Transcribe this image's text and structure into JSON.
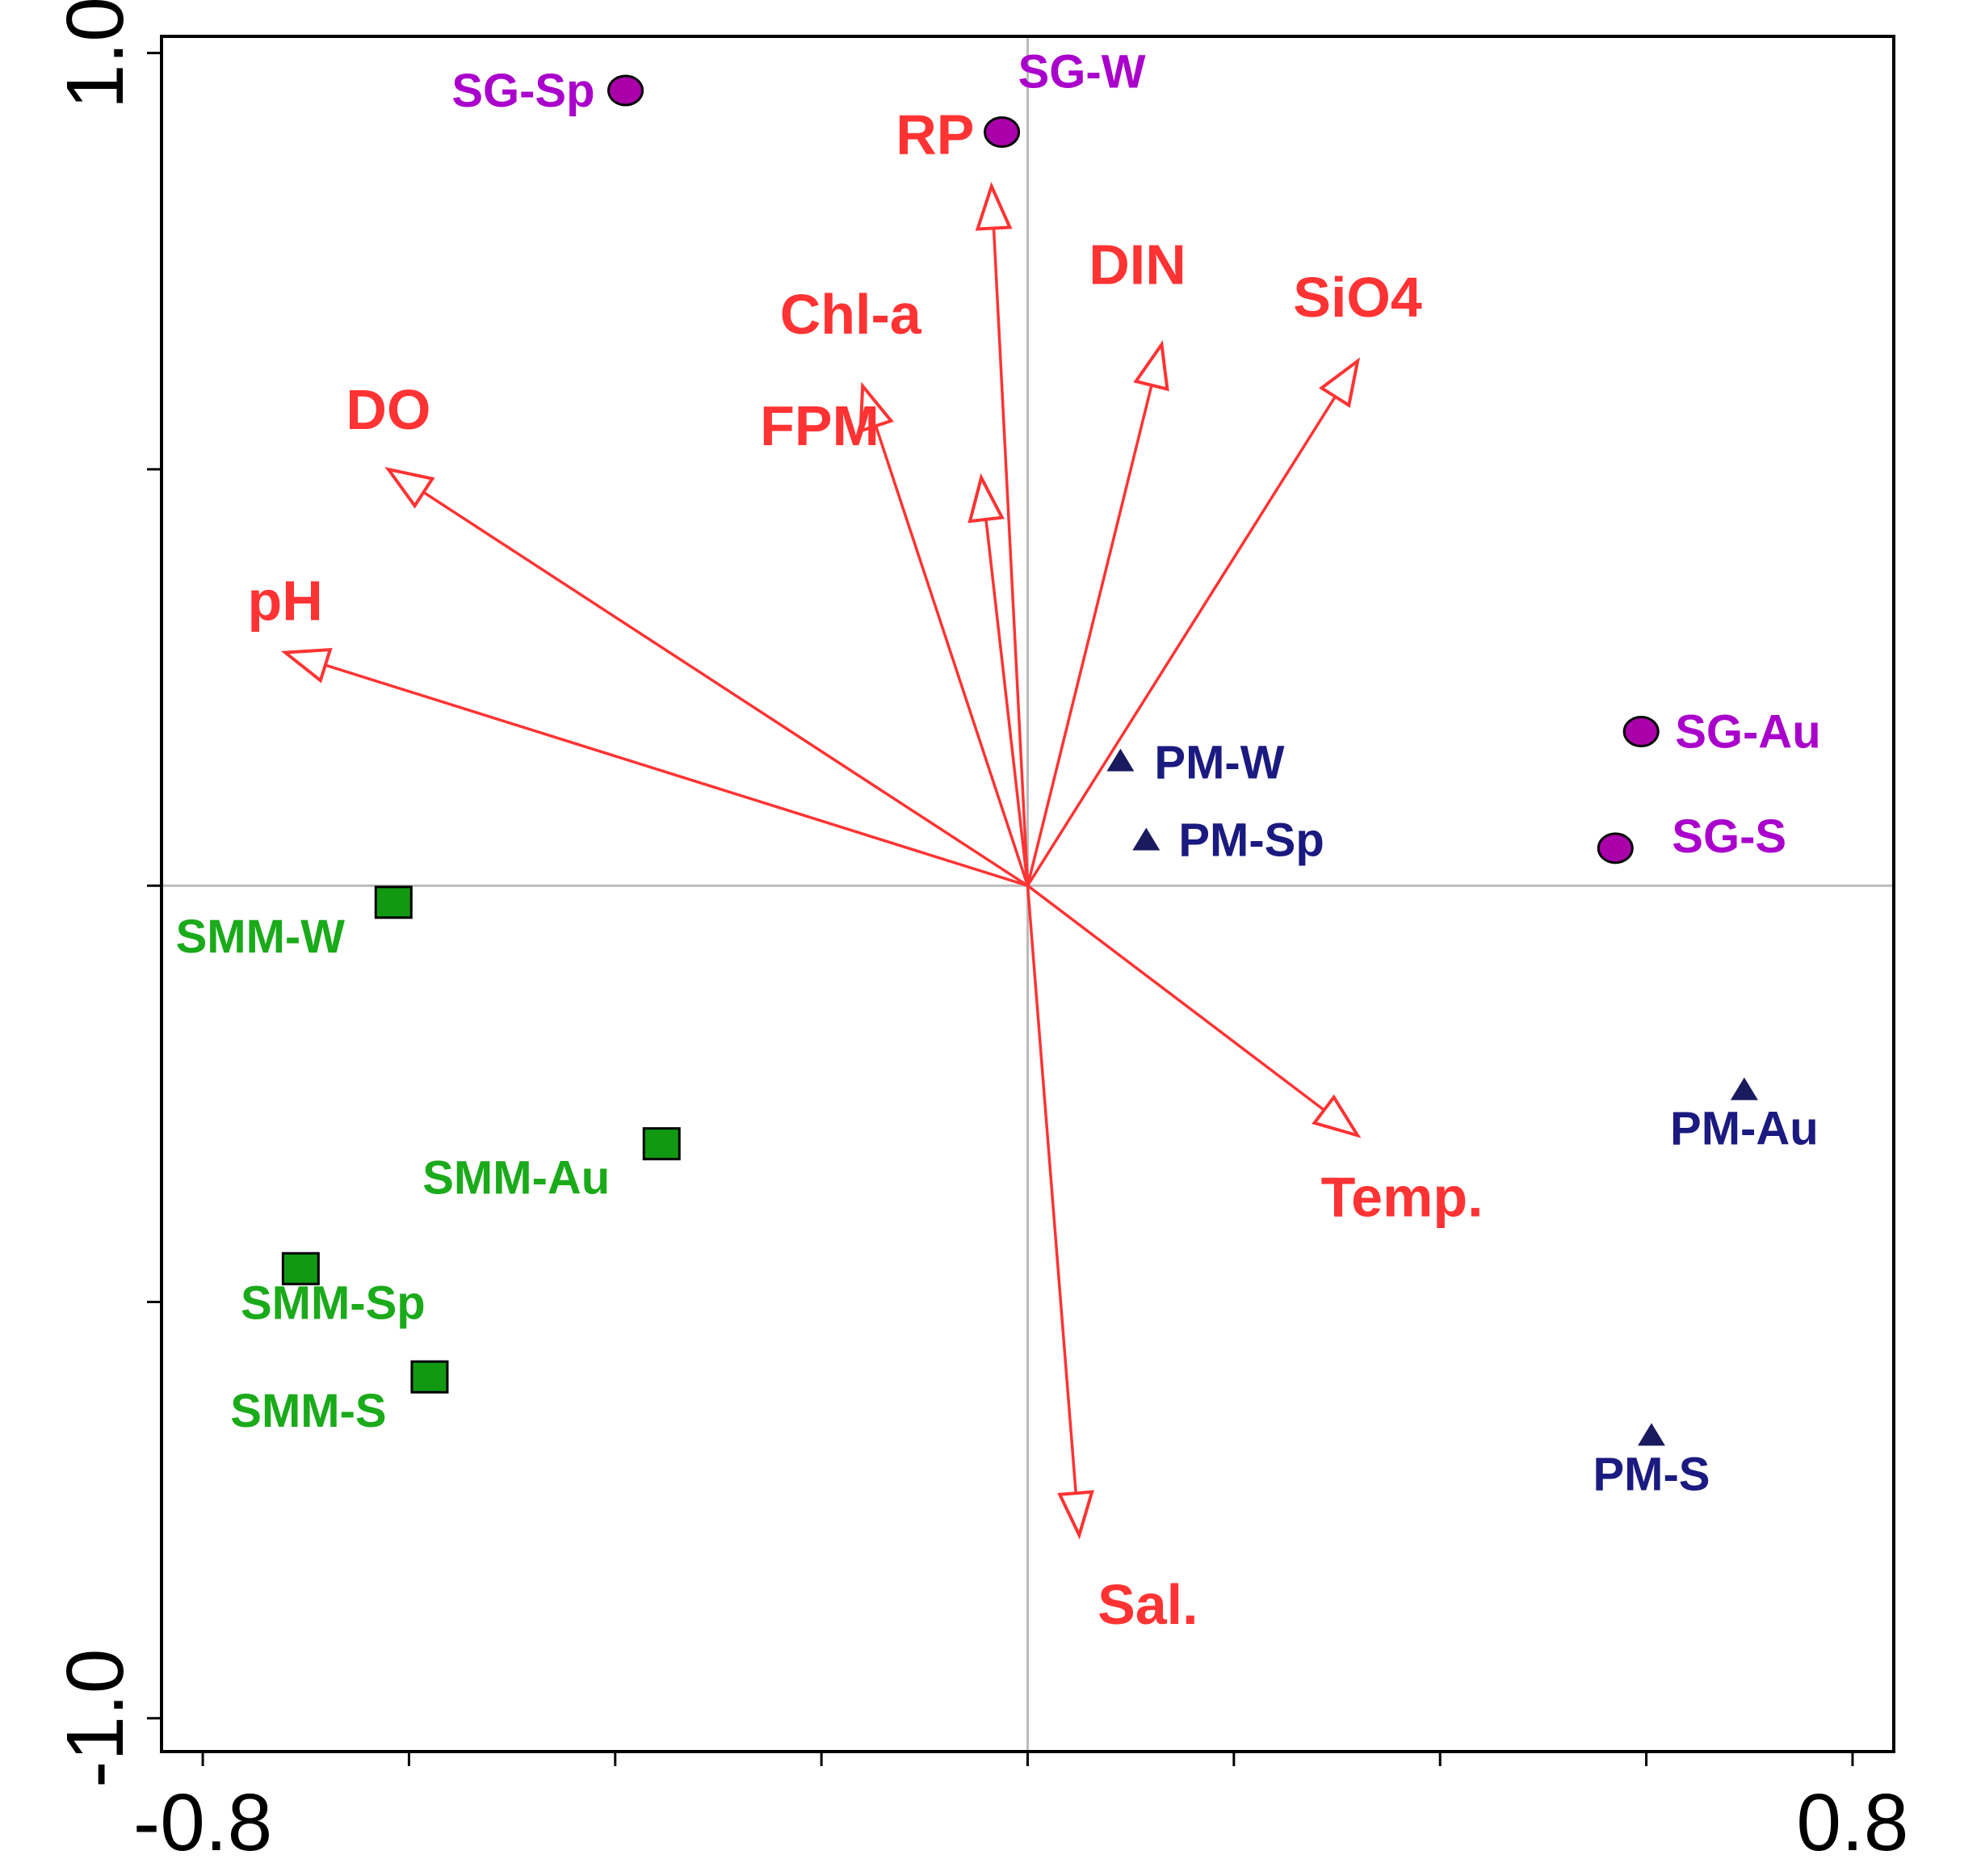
{
  "chart_data": {
    "type": "scatter",
    "subtype": "ordination-biplot",
    "title": "",
    "xlabel": "",
    "ylabel": "",
    "xlim": [
      -0.84,
      0.84
    ],
    "ylim": [
      -1.04,
      1.02
    ],
    "x_ticks": [
      -0.8,
      -0.6,
      -0.4,
      -0.2,
      0.0,
      0.2,
      0.4,
      0.6,
      0.8
    ],
    "y_ticks": [
      -1.0,
      -0.5,
      0.0,
      0.5,
      1.0
    ],
    "x_tick_labels": [
      {
        "value": -0.8,
        "text": "-0.8"
      },
      {
        "value": 0.8,
        "text": "0.8"
      }
    ],
    "y_tick_labels": [
      {
        "value": 1.0,
        "text": "1.0"
      },
      {
        "value": -1.0,
        "text": "-1.0"
      }
    ],
    "origin_lines": true,
    "arrow_color": "#ff3333",
    "variables": [
      {
        "name": "RP",
        "x": -0.035,
        "y": 0.84
      },
      {
        "name": "DIN",
        "x": 0.13,
        "y": 0.65
      },
      {
        "name": "SiO4",
        "x": 0.32,
        "y": 0.63
      },
      {
        "name": "Chl-a",
        "x": -0.16,
        "y": 0.6
      },
      {
        "name": "FPM",
        "x": -0.045,
        "y": 0.49
      },
      {
        "name": "DO",
        "x": -0.62,
        "y": 0.5
      },
      {
        "name": "pH",
        "x": -0.72,
        "y": 0.28
      },
      {
        "name": "Temp.",
        "x": 0.32,
        "y": -0.3
      },
      {
        "name": "Sal.",
        "x": 0.05,
        "y": -0.78
      }
    ],
    "series": [
      {
        "name": "SG",
        "marker": "circle",
        "marker_color": "#aa00aa",
        "label_color": "#aa00cc",
        "points": [
          {
            "label": "SG-Sp",
            "x": -0.39,
            "y": 0.955
          },
          {
            "label": "SG-W",
            "x": -0.025,
            "y": 0.905
          },
          {
            "label": "SG-Au",
            "x": 0.595,
            "y": 0.185
          },
          {
            "label": "SG-S",
            "x": 0.57,
            "y": 0.045
          }
        ]
      },
      {
        "name": "PM",
        "marker": "triangle",
        "marker_color": "#1a1a5e",
        "label_color": "#1a1a80",
        "points": [
          {
            "label": "PM-W",
            "x": 0.09,
            "y": 0.15
          },
          {
            "label": "PM-Sp",
            "x": 0.115,
            "y": 0.055
          },
          {
            "label": "PM-Au",
            "x": 0.695,
            "y": -0.245
          },
          {
            "label": "PM-S",
            "x": 0.605,
            "y": -0.66
          }
        ]
      },
      {
        "name": "SMM",
        "marker": "square",
        "marker_color": "#119911",
        "label_color": "#1aaa1a",
        "points": [
          {
            "label": "SMM-W",
            "x": -0.615,
            "y": -0.02
          },
          {
            "label": "SMM-Au",
            "x": -0.355,
            "y": -0.31
          },
          {
            "label": "SMM-Sp",
            "x": -0.705,
            "y": -0.46
          },
          {
            "label": "SMM-S",
            "x": -0.58,
            "y": -0.59
          }
        ]
      }
    ]
  }
}
